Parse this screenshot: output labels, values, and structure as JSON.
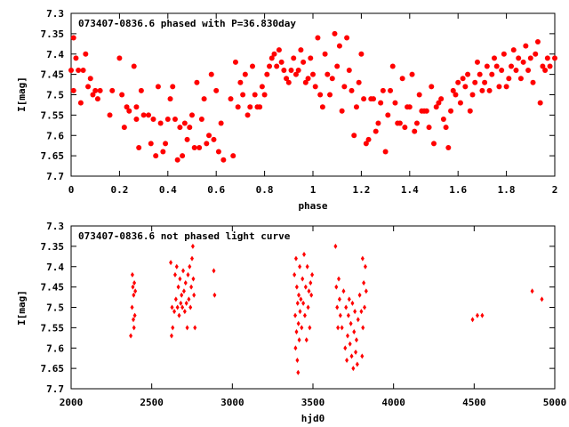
{
  "chart_data": [
    {
      "type": "scatter",
      "title": "073407-0836.6 phased with P=36.830day",
      "xlabel": "phase",
      "ylabel": "I[mag]",
      "xlim": [
        0,
        2
      ],
      "ylim": [
        7.7,
        7.3
      ],
      "y_inverted": true,
      "grid": false,
      "xticks": [
        0,
        0.2,
        0.4,
        0.6,
        0.8,
        1,
        1.2,
        1.4,
        1.6,
        1.8,
        2
      ],
      "yticks": [
        7.3,
        7.35,
        7.4,
        7.45,
        7.5,
        7.55,
        7.6,
        7.65,
        7.7
      ],
      "marker_color": "#ff0000",
      "marker": "filled-circle",
      "points": [
        [
          0.0,
          7.44
        ],
        [
          0.01,
          7.49
        ],
        [
          0.01,
          7.36
        ],
        [
          0.02,
          7.41
        ],
        [
          0.03,
          7.44
        ],
        [
          0.04,
          7.52
        ],
        [
          0.05,
          7.44
        ],
        [
          0.06,
          7.4
        ],
        [
          0.07,
          7.48
        ],
        [
          0.08,
          7.46
        ],
        [
          0.09,
          7.5
        ],
        [
          0.1,
          7.49
        ],
        [
          0.11,
          7.51
        ],
        [
          0.12,
          7.49
        ],
        [
          0.16,
          7.55
        ],
        [
          0.17,
          7.49
        ],
        [
          0.2,
          7.41
        ],
        [
          0.21,
          7.5
        ],
        [
          0.22,
          7.58
        ],
        [
          0.23,
          7.53
        ],
        [
          0.24,
          7.54
        ],
        [
          0.26,
          7.43
        ],
        [
          0.27,
          7.53
        ],
        [
          0.27,
          7.56
        ],
        [
          0.28,
          7.63
        ],
        [
          0.29,
          7.49
        ],
        [
          0.3,
          7.55
        ],
        [
          0.32,
          7.55
        ],
        [
          0.33,
          7.62
        ],
        [
          0.34,
          7.56
        ],
        [
          0.35,
          7.65
        ],
        [
          0.36,
          7.48
        ],
        [
          0.37,
          7.57
        ],
        [
          0.38,
          7.64
        ],
        [
          0.39,
          7.62
        ],
        [
          0.4,
          7.56
        ],
        [
          0.41,
          7.51
        ],
        [
          0.42,
          7.48
        ],
        [
          0.43,
          7.56
        ],
        [
          0.44,
          7.66
        ],
        [
          0.45,
          7.58
        ],
        [
          0.46,
          7.65
        ],
        [
          0.47,
          7.57
        ],
        [
          0.48,
          7.61
        ],
        [
          0.49,
          7.58
        ],
        [
          0.5,
          7.55
        ],
        [
          0.51,
          7.63
        ],
        [
          0.52,
          7.47
        ],
        [
          0.53,
          7.63
        ],
        [
          0.54,
          7.56
        ],
        [
          0.55,
          7.51
        ],
        [
          0.56,
          7.62
        ],
        [
          0.57,
          7.6
        ],
        [
          0.58,
          7.45
        ],
        [
          0.59,
          7.61
        ],
        [
          0.6,
          7.49
        ],
        [
          0.61,
          7.64
        ],
        [
          0.62,
          7.57
        ],
        [
          0.63,
          7.66
        ],
        [
          0.66,
          7.51
        ],
        [
          0.67,
          7.65
        ],
        [
          0.68,
          7.42
        ],
        [
          0.69,
          7.53
        ],
        [
          0.7,
          7.47
        ],
        [
          0.71,
          7.5
        ],
        [
          0.72,
          7.45
        ],
        [
          0.73,
          7.55
        ],
        [
          0.74,
          7.53
        ],
        [
          0.75,
          7.43
        ],
        [
          0.76,
          7.5
        ],
        [
          0.77,
          7.53
        ],
        [
          0.78,
          7.53
        ],
        [
          0.79,
          7.48
        ],
        [
          0.8,
          7.5
        ],
        [
          0.81,
          7.45
        ],
        [
          0.82,
          7.43
        ],
        [
          0.83,
          7.41
        ],
        [
          0.84,
          7.4
        ],
        [
          0.85,
          7.43
        ],
        [
          0.86,
          7.39
        ],
        [
          0.87,
          7.42
        ],
        [
          0.88,
          7.44
        ],
        [
          0.89,
          7.46
        ],
        [
          0.9,
          7.47
        ],
        [
          0.91,
          7.44
        ],
        [
          0.92,
          7.41
        ],
        [
          0.93,
          7.45
        ],
        [
          0.94,
          7.44
        ],
        [
          0.95,
          7.39
        ],
        [
          0.96,
          7.42
        ],
        [
          0.97,
          7.47
        ],
        [
          0.98,
          7.46
        ],
        [
          0.99,
          7.41
        ],
        [
          1.0,
          7.45
        ],
        [
          1.01,
          7.48
        ],
        [
          1.02,
          7.36
        ],
        [
          1.03,
          7.5
        ],
        [
          1.04,
          7.53
        ],
        [
          1.05,
          7.4
        ],
        [
          1.06,
          7.45
        ],
        [
          1.07,
          7.5
        ],
        [
          1.08,
          7.46
        ],
        [
          1.09,
          7.35
        ],
        [
          1.1,
          7.43
        ],
        [
          1.11,
          7.38
        ],
        [
          1.12,
          7.54
        ],
        [
          1.13,
          7.48
        ],
        [
          1.14,
          7.36
        ],
        [
          1.15,
          7.44
        ],
        [
          1.16,
          7.49
        ],
        [
          1.17,
          7.6
        ],
        [
          1.18,
          7.53
        ],
        [
          1.19,
          7.47
        ],
        [
          1.2,
          7.4
        ],
        [
          1.21,
          7.51
        ],
        [
          1.22,
          7.62
        ],
        [
          1.23,
          7.61
        ],
        [
          1.24,
          7.51
        ],
        [
          1.25,
          7.51
        ],
        [
          1.26,
          7.59
        ],
        [
          1.27,
          7.57
        ],
        [
          1.28,
          7.52
        ],
        [
          1.29,
          7.49
        ],
        [
          1.3,
          7.64
        ],
        [
          1.31,
          7.55
        ],
        [
          1.32,
          7.49
        ],
        [
          1.33,
          7.43
        ],
        [
          1.34,
          7.52
        ],
        [
          1.35,
          7.57
        ],
        [
          1.36,
          7.57
        ],
        [
          1.37,
          7.46
        ],
        [
          1.38,
          7.58
        ],
        [
          1.39,
          7.53
        ],
        [
          1.4,
          7.53
        ],
        [
          1.41,
          7.45
        ],
        [
          1.42,
          7.59
        ],
        [
          1.43,
          7.57
        ],
        [
          1.44,
          7.5
        ],
        [
          1.45,
          7.54
        ],
        [
          1.46,
          7.54
        ],
        [
          1.47,
          7.54
        ],
        [
          1.48,
          7.58
        ],
        [
          1.49,
          7.48
        ],
        [
          1.5,
          7.62
        ],
        [
          1.51,
          7.53
        ],
        [
          1.52,
          7.52
        ],
        [
          1.53,
          7.51
        ],
        [
          1.54,
          7.56
        ],
        [
          1.55,
          7.58
        ],
        [
          1.56,
          7.63
        ],
        [
          1.57,
          7.54
        ],
        [
          1.58,
          7.49
        ],
        [
          1.59,
          7.5
        ],
        [
          1.6,
          7.47
        ],
        [
          1.61,
          7.52
        ],
        [
          1.62,
          7.46
        ],
        [
          1.63,
          7.48
        ],
        [
          1.64,
          7.45
        ],
        [
          1.65,
          7.54
        ],
        [
          1.66,
          7.5
        ],
        [
          1.67,
          7.47
        ],
        [
          1.68,
          7.42
        ],
        [
          1.69,
          7.45
        ],
        [
          1.7,
          7.49
        ],
        [
          1.71,
          7.47
        ],
        [
          1.72,
          7.43
        ],
        [
          1.73,
          7.49
        ],
        [
          1.74,
          7.45
        ],
        [
          1.75,
          7.41
        ],
        [
          1.76,
          7.43
        ],
        [
          1.77,
          7.48
        ],
        [
          1.78,
          7.44
        ],
        [
          1.79,
          7.4
        ],
        [
          1.8,
          7.48
        ],
        [
          1.81,
          7.46
        ],
        [
          1.82,
          7.43
        ],
        [
          1.83,
          7.39
        ],
        [
          1.84,
          7.44
        ],
        [
          1.85,
          7.41
        ],
        [
          1.86,
          7.46
        ],
        [
          1.87,
          7.42
        ],
        [
          1.88,
          7.38
        ],
        [
          1.89,
          7.44
        ],
        [
          1.9,
          7.41
        ],
        [
          1.91,
          7.47
        ],
        [
          1.92,
          7.4
        ],
        [
          1.93,
          7.37
        ],
        [
          1.94,
          7.52
        ],
        [
          1.95,
          7.43
        ],
        [
          1.96,
          7.44
        ],
        [
          1.97,
          7.41
        ],
        [
          1.98,
          7.43
        ],
        [
          2.0,
          7.41
        ]
      ]
    },
    {
      "type": "scatter",
      "title": "073407-0836.6 not phased light curve",
      "xlabel": "hjd0",
      "ylabel": "I[mag]",
      "xlim": [
        2000,
        5000
      ],
      "ylim": [
        7.7,
        7.3
      ],
      "y_inverted": true,
      "grid": false,
      "xticks": [
        2000,
        2500,
        3000,
        3500,
        4000,
        4500,
        5000
      ],
      "yticks": [
        7.3,
        7.35,
        7.4,
        7.45,
        7.5,
        7.55,
        7.6,
        7.65,
        7.7
      ],
      "marker_color": "#ff0000",
      "marker": "diamond",
      "points": [
        [
          2370,
          7.57
        ],
        [
          2378,
          7.5
        ],
        [
          2380,
          7.42
        ],
        [
          2383,
          7.45
        ],
        [
          2386,
          7.53
        ],
        [
          2388,
          7.47
        ],
        [
          2390,
          7.55
        ],
        [
          2392,
          7.44
        ],
        [
          2395,
          7.52
        ],
        [
          2398,
          7.46
        ],
        [
          2618,
          7.39
        ],
        [
          2623,
          7.57
        ],
        [
          2626,
          7.5
        ],
        [
          2630,
          7.55
        ],
        [
          2640,
          7.51
        ],
        [
          2645,
          7.42
        ],
        [
          2650,
          7.48
        ],
        [
          2655,
          7.4
        ],
        [
          2660,
          7.5
        ],
        [
          2665,
          7.45
        ],
        [
          2670,
          7.52
        ],
        [
          2675,
          7.43
        ],
        [
          2680,
          7.49
        ],
        [
          2685,
          7.47
        ],
        [
          2690,
          7.5
        ],
        [
          2695,
          7.41
        ],
        [
          2700,
          7.46
        ],
        [
          2705,
          7.51
        ],
        [
          2710,
          7.44
        ],
        [
          2715,
          7.49
        ],
        [
          2720,
          7.55
        ],
        [
          2725,
          7.42
        ],
        [
          2730,
          7.48
        ],
        [
          2735,
          7.4
        ],
        [
          2740,
          7.5
        ],
        [
          2745,
          7.45
        ],
        [
          2750,
          7.38
        ],
        [
          2755,
          7.35
        ],
        [
          2758,
          7.43
        ],
        [
          2762,
          7.47
        ],
        [
          2768,
          7.55
        ],
        [
          2885,
          7.41
        ],
        [
          2890,
          7.47
        ],
        [
          3385,
          7.42
        ],
        [
          3390,
          7.52
        ],
        [
          3392,
          7.6
        ],
        [
          3395,
          7.38
        ],
        [
          3398,
          7.56
        ],
        [
          3400,
          7.45
        ],
        [
          3403,
          7.63
        ],
        [
          3405,
          7.49
        ],
        [
          3408,
          7.66
        ],
        [
          3410,
          7.54
        ],
        [
          3412,
          7.47
        ],
        [
          3415,
          7.58
        ],
        [
          3418,
          7.4
        ],
        [
          3420,
          7.51
        ],
        [
          3425,
          7.48
        ],
        [
          3430,
          7.55
        ],
        [
          3435,
          7.43
        ],
        [
          3440,
          7.49
        ],
        [
          3445,
          7.37
        ],
        [
          3450,
          7.52
        ],
        [
          3455,
          7.45
        ],
        [
          3460,
          7.58
        ],
        [
          3465,
          7.4
        ],
        [
          3470,
          7.5
        ],
        [
          3475,
          7.46
        ],
        [
          3480,
          7.55
        ],
        [
          3485,
          7.44
        ],
        [
          3490,
          7.47
        ],
        [
          3495,
          7.42
        ],
        [
          3640,
          7.35
        ],
        [
          3645,
          7.45
        ],
        [
          3650,
          7.5
        ],
        [
          3655,
          7.55
        ],
        [
          3660,
          7.43
        ],
        [
          3665,
          7.48
        ],
        [
          3670,
          7.52
        ],
        [
          3680,
          7.55
        ],
        [
          3690,
          7.46
        ],
        [
          3700,
          7.6
        ],
        [
          3705,
          7.5
        ],
        [
          3710,
          7.63
        ],
        [
          3715,
          7.57
        ],
        [
          3720,
          7.52
        ],
        [
          3725,
          7.48
        ],
        [
          3730,
          7.59
        ],
        [
          3735,
          7.54
        ],
        [
          3740,
          7.62
        ],
        [
          3745,
          7.49
        ],
        [
          3750,
          7.65
        ],
        [
          3755,
          7.56
        ],
        [
          3760,
          7.51
        ],
        [
          3765,
          7.61
        ],
        [
          3770,
          7.58
        ],
        [
          3775,
          7.64
        ],
        [
          3780,
          7.53
        ],
        [
          3790,
          7.47
        ],
        [
          3800,
          7.51
        ],
        [
          3805,
          7.62
        ],
        [
          3808,
          7.38
        ],
        [
          3810,
          7.55
        ],
        [
          3815,
          7.44
        ],
        [
          3820,
          7.5
        ],
        [
          3825,
          7.4
        ],
        [
          3830,
          7.46
        ],
        [
          4490,
          7.53
        ],
        [
          4520,
          7.52
        ],
        [
          4550,
          7.52
        ],
        [
          4860,
          7.46
        ],
        [
          4920,
          7.48
        ]
      ]
    }
  ]
}
